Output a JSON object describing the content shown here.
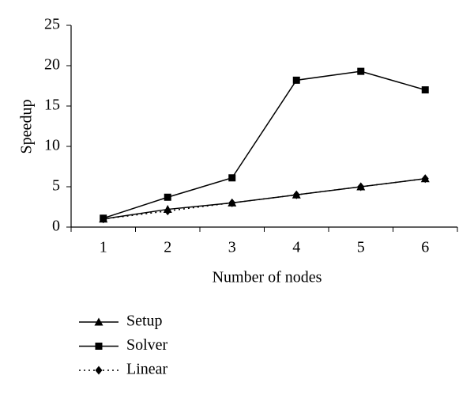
{
  "chart_data": {
    "type": "line",
    "x_label": "Number of nodes",
    "y_label": "Speedup",
    "categories": [
      "1",
      "2",
      "3",
      "4",
      "5",
      "6"
    ],
    "series": [
      {
        "name": "Setup",
        "color": "#000000",
        "marker": "triangle",
        "dash": "solid",
        "values": [
          1,
          2.2,
          3,
          4,
          5,
          6
        ]
      },
      {
        "name": "Solver",
        "color": "#000000",
        "marker": "square",
        "dash": "solid",
        "values": [
          1.1,
          3.7,
          6.1,
          18.2,
          19.3,
          17.0
        ]
      },
      {
        "name": "Linear",
        "color": "#000000",
        "marker": "diamond",
        "dash": "dotted",
        "values": [
          1,
          2,
          3,
          4,
          5,
          6
        ]
      }
    ],
    "ylim": [
      0,
      25
    ],
    "yticks": [
      0,
      5,
      10,
      15,
      20,
      25
    ],
    "grid": false
  }
}
